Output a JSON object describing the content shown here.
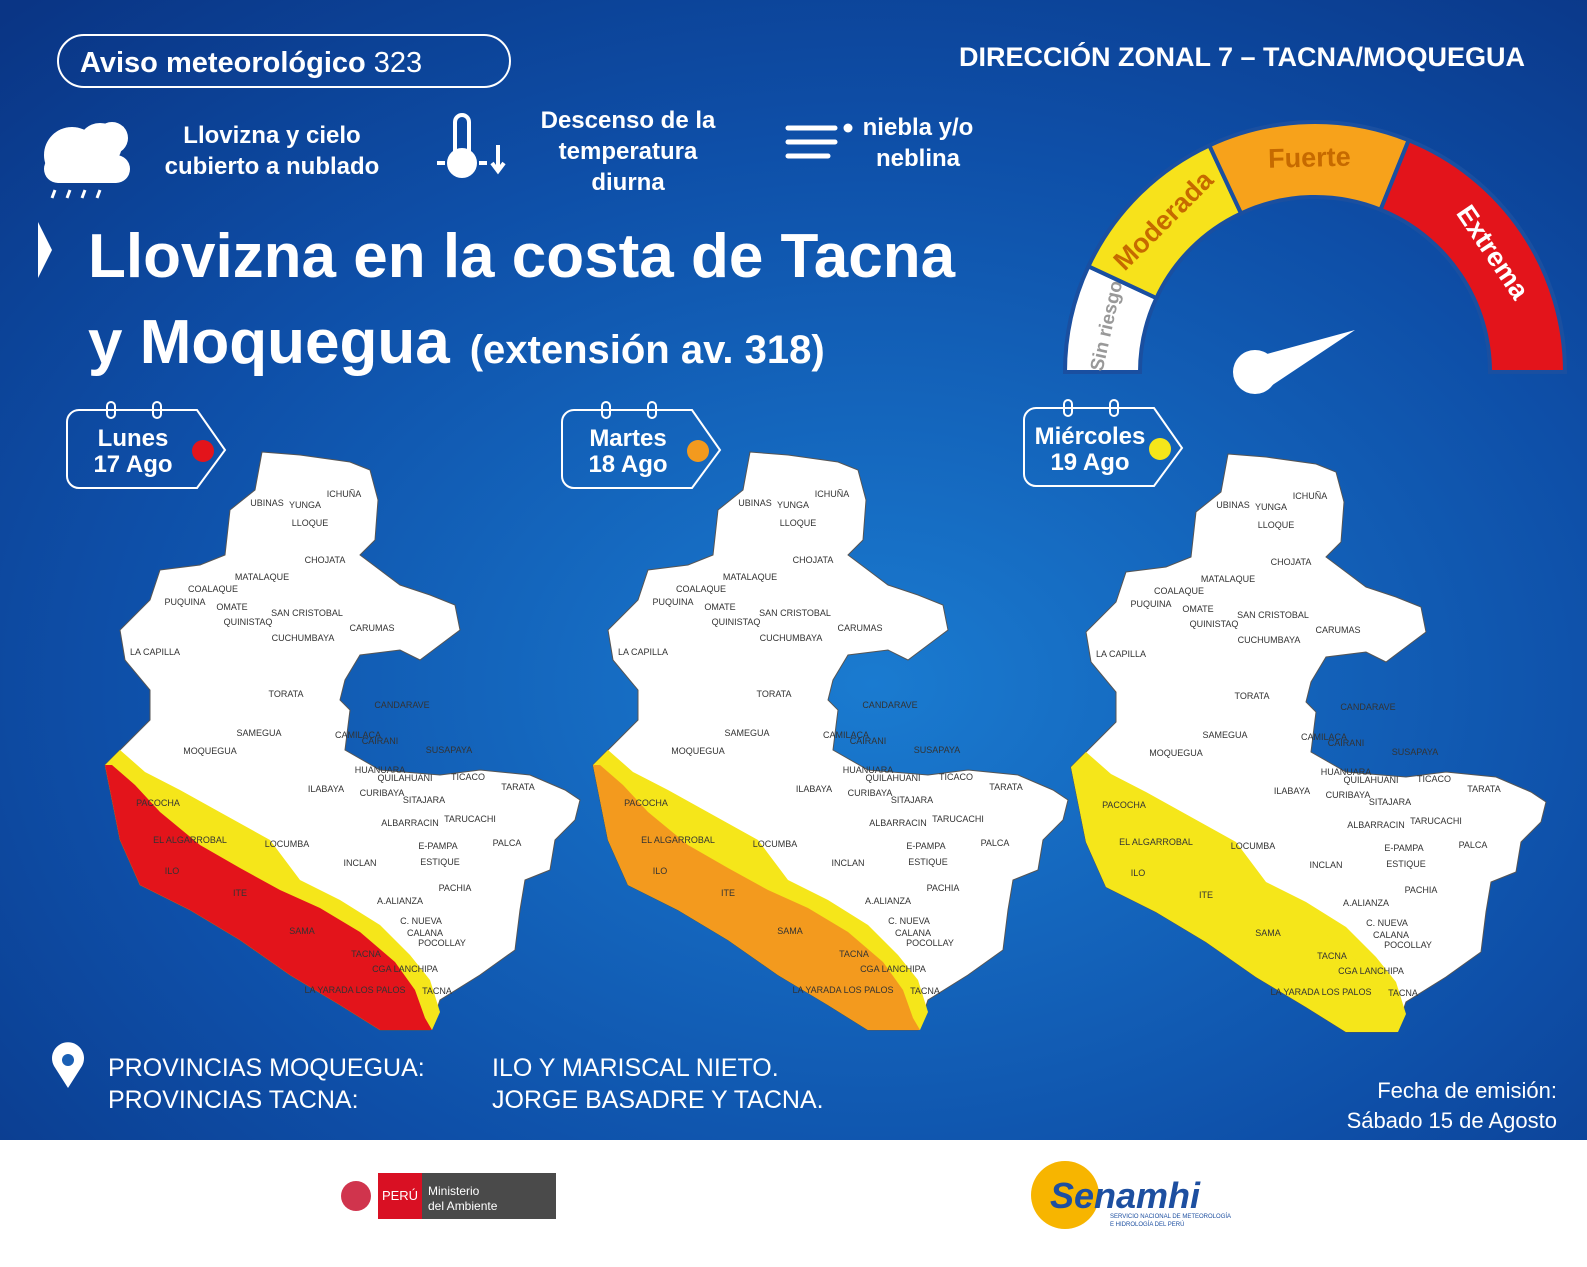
{
  "header": {
    "badge_bold": "Aviso meteorológico",
    "badge_number": "323",
    "office": "DIRECCIÓN ZONAL 7 – TACNA/MOQUEGUA"
  },
  "hazards": [
    {
      "lines": [
        "Llovizna y cielo",
        "cubierto a nublado"
      ]
    },
    {
      "lines": [
        "Descenso de la",
        "temperatura",
        "diurna"
      ]
    },
    {
      "lines": [
        "niebla y/o",
        "neblina"
      ]
    }
  ],
  "title": {
    "lines": [
      "Llovizna en la costa de Tacna",
      "y Moquegua"
    ],
    "note": "(extensión av. 318)"
  },
  "risk_scale": [
    {
      "label": "Sin riesgo",
      "color": "#ffffff"
    },
    {
      "label": "Moderada",
      "color": "#f7e21b"
    },
    {
      "label": "Fuerte",
      "color": "#f7a21b"
    },
    {
      "label": "Extrema",
      "color": "#e3141b"
    }
  ],
  "days": [
    {
      "day": "Lunes",
      "date": "17 Ago",
      "color": "#e3141b"
    },
    {
      "day": "Martes",
      "date": "18 Ago",
      "color": "#f39a1e"
    },
    {
      "day": "Miércoles",
      "date": "19 Ago",
      "color": "#f5e61a"
    }
  ],
  "place_names": [
    "ICHUÑA",
    "UBINAS",
    "YUNGA",
    "LLOQUE",
    "CHOJATA",
    "MATALAQUE",
    "COALAQUE",
    "PUQUINA",
    "OMATE",
    "QUINISTAQ",
    "SAN CRISTOBAL",
    "CUCHUMBAYA",
    "CARUMAS",
    "LA CAPILLA",
    "TORATA",
    "CANDARAVE",
    "SAMEGUA",
    "CAMILACA",
    "CAIRANI",
    "MOQUEGUA",
    "SUSAPAYA",
    "HUANUARA",
    "QUILAHUANI",
    "TICACO",
    "ILABAYA",
    "CURIBAYA",
    "TARATA",
    "SITAJARA",
    "PACOCHA",
    "ALBARRACIN",
    "TARUCACHI",
    "EL ALGARROBAL",
    "LOCUMBA",
    "E-PAMPA",
    "PALCA",
    "ESTIQUE",
    "ILO",
    "INCLAN",
    "PACHIA",
    "ITE",
    "A.ALIANZA",
    "C. NUEVA",
    "CALANA",
    "POCOLLAY",
    "SAMA",
    "TACNA",
    "CGA LANCHIPA",
    "LA YARADA LOS PALOS",
    "TACNA"
  ],
  "provinces": [
    {
      "label": "PROVINCIAS MOQUEGUA:",
      "value": "ILO Y MARISCAL NIETO."
    },
    {
      "label": "PROVINCIAS TACNA:",
      "value": "JORGE BASADRE Y TACNA."
    }
  ],
  "issued": {
    "label": "Fecha de emisión:",
    "date": "Sábado 15 de Agosto"
  },
  "footer": {
    "peru": "PERÚ",
    "ministry": [
      "Ministerio",
      "del Ambiente"
    ],
    "brand": "Senamhi",
    "brand_sub": [
      "SERVICIO NACIONAL DE METEOROLOGÍA",
      "E HIDROLOGÍA DEL PERÚ"
    ]
  }
}
